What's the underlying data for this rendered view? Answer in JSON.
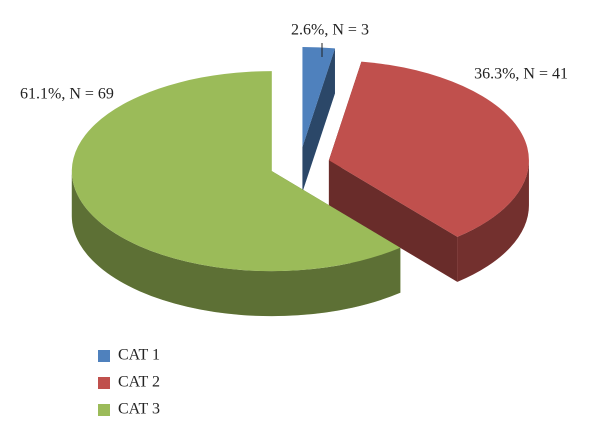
{
  "chart_data": {
    "type": "pie",
    "categories": [
      "CAT 1",
      "CAT 2",
      "CAT 3"
    ],
    "values": [
      2.6,
      36.3,
      61.1
    ],
    "value_labels": [
      "2.6%, N = 3",
      "36.3%, N = 41",
      "61.1%, N = 69"
    ],
    "colors": [
      "#4f81bd",
      "#c0504d",
      "#9bbb59"
    ],
    "legend": "bottom-left"
  }
}
